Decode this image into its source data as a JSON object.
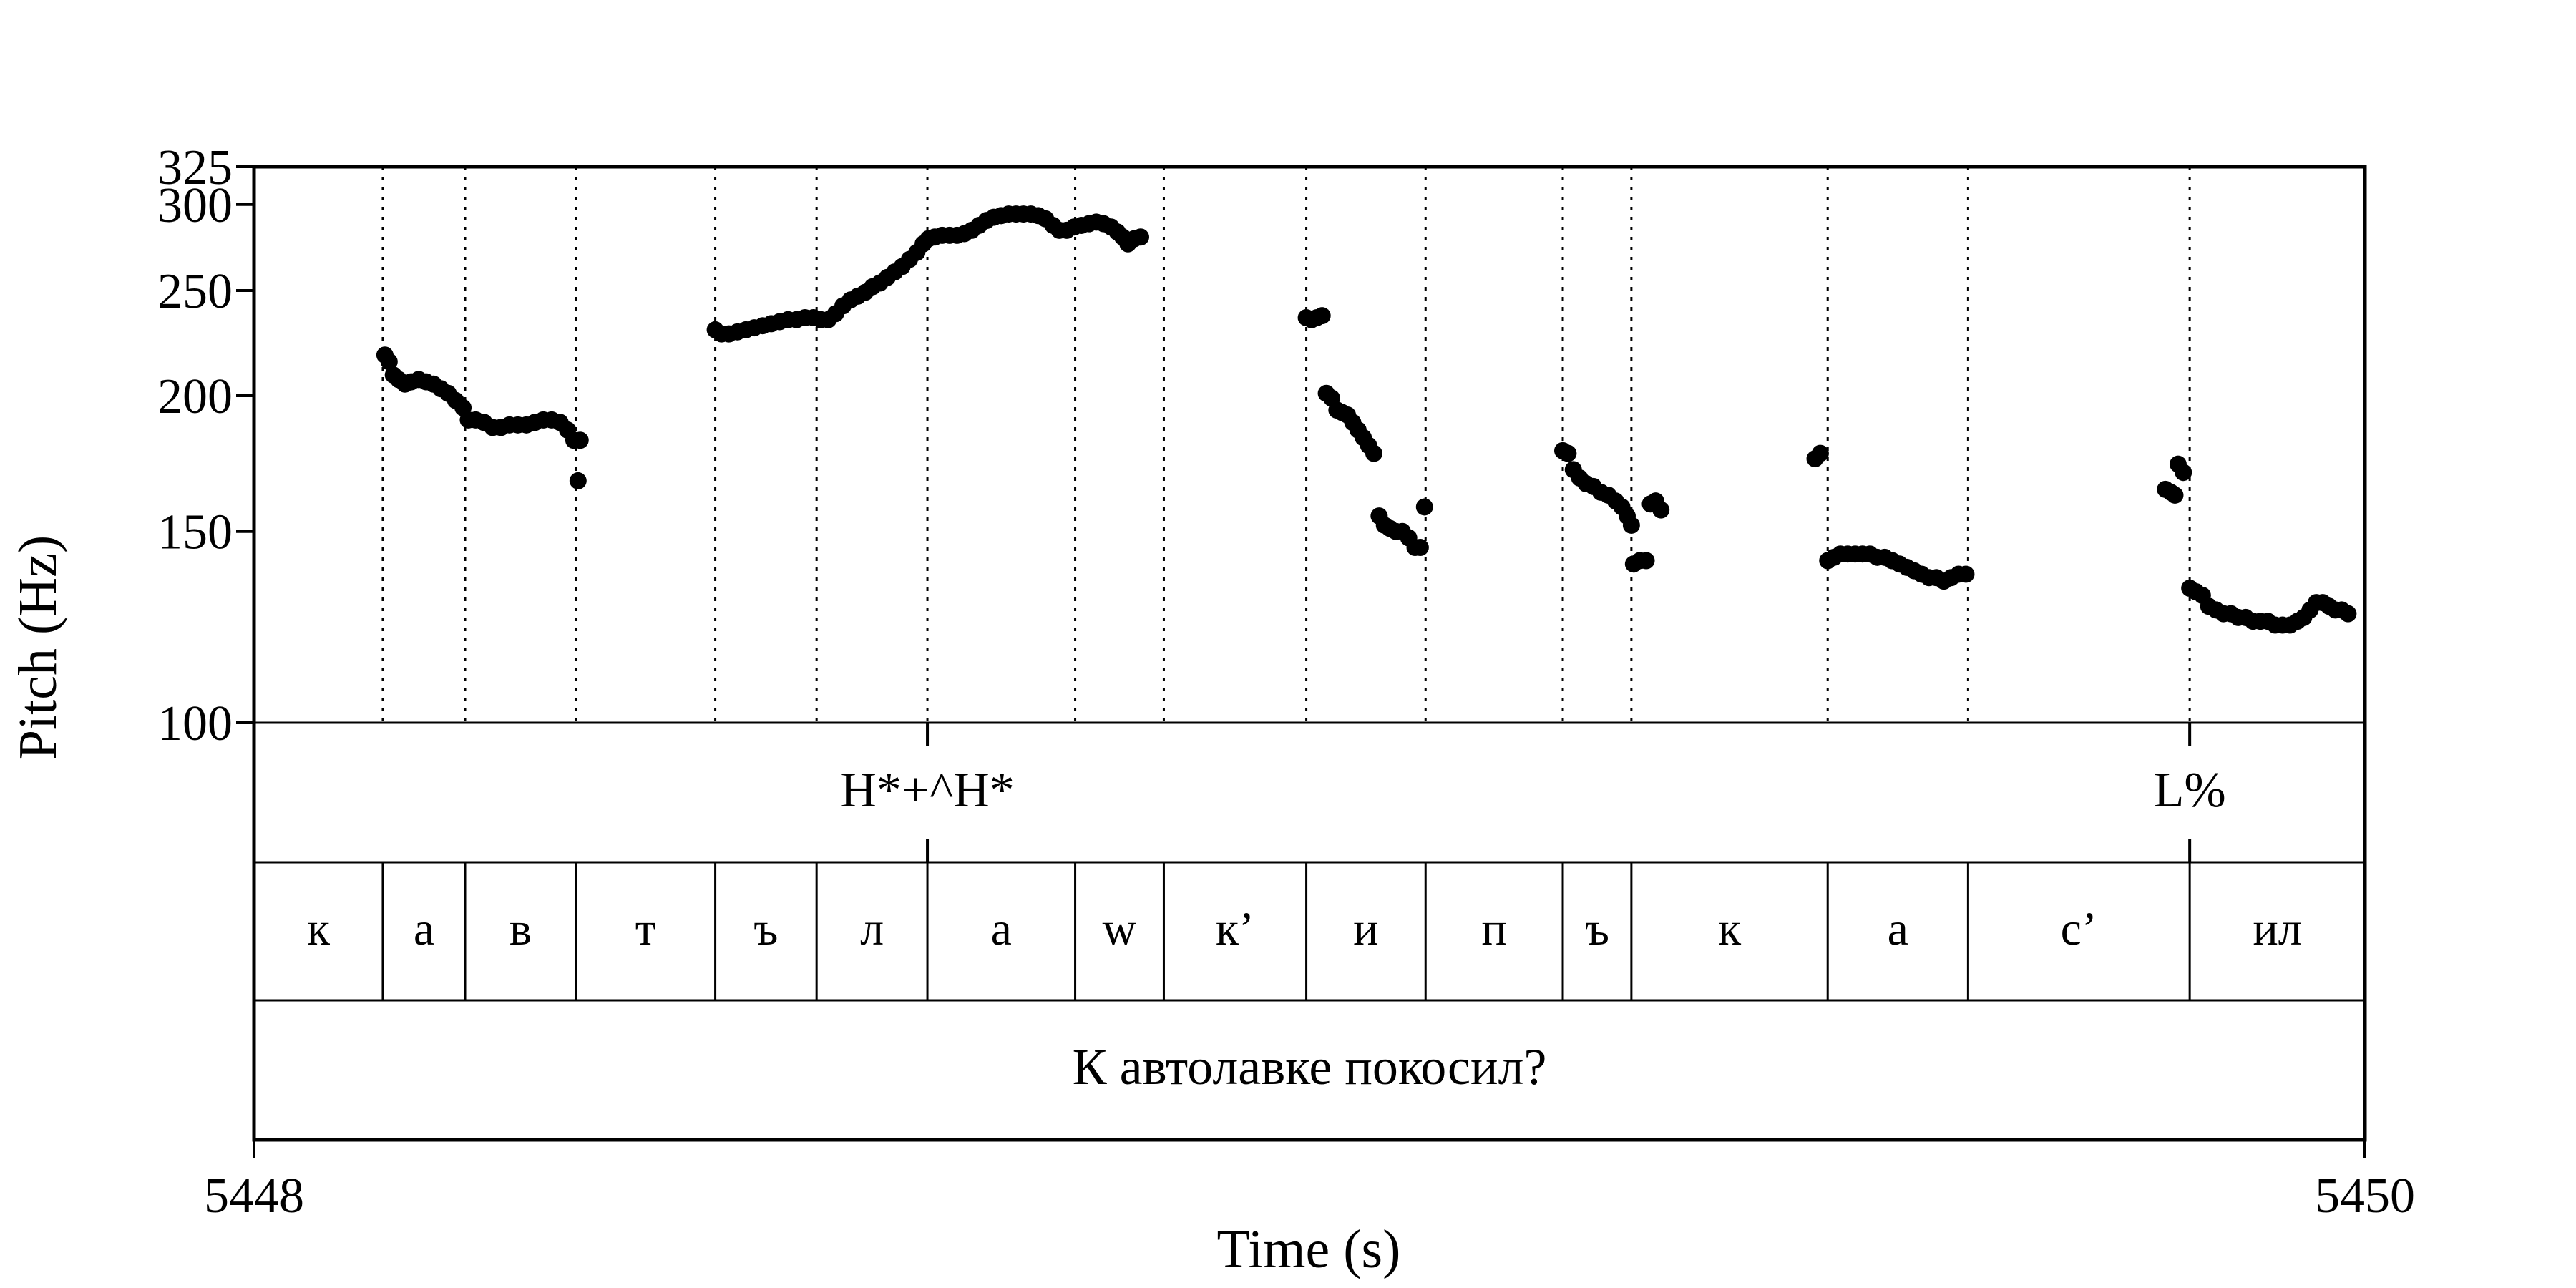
{
  "chart_data": {
    "type": "scatter",
    "ylabel": "Pitch (Hz)",
    "xlabel": "Time (s)",
    "ylim": [
      100,
      325
    ],
    "y_ticks": [
      "100",
      "150",
      "200",
      "250",
      "300",
      "325"
    ],
    "xlim": [
      5448,
      5450
    ],
    "x_ticks": [
      "5448",
      "5450"
    ],
    "scale": "log",
    "grid": "dotted vertical lines at segment boundaries",
    "boundaries": [
      5448.122,
      5448.2,
      5448.305,
      5448.437,
      5448.533,
      5448.638,
      5448.778,
      5448.862,
      5448.997,
      5449.11,
      5449.24,
      5449.305,
      5449.491,
      5449.624,
      5449.834
    ],
    "tones": [
      {
        "time": 5448.638,
        "label": "H*+^H*"
      },
      {
        "time": 5449.834,
        "label": "L%"
      }
    ],
    "segments": [
      {
        "start": 5448.0,
        "end": 5448.122,
        "label": "к"
      },
      {
        "start": 5448.122,
        "end": 5448.2,
        "label": "а"
      },
      {
        "start": 5448.2,
        "end": 5448.305,
        "label": "в"
      },
      {
        "start": 5448.305,
        "end": 5448.437,
        "label": "т"
      },
      {
        "start": 5448.437,
        "end": 5448.533,
        "label": "ъ"
      },
      {
        "start": 5448.533,
        "end": 5448.638,
        "label": "л"
      },
      {
        "start": 5448.638,
        "end": 5448.778,
        "label": "а"
      },
      {
        "start": 5448.778,
        "end": 5448.862,
        "label": "w"
      },
      {
        "start": 5448.862,
        "end": 5448.997,
        "label": "к’"
      },
      {
        "start": 5448.997,
        "end": 5449.11,
        "label": "и"
      },
      {
        "start": 5449.11,
        "end": 5449.24,
        "label": "п"
      },
      {
        "start": 5449.24,
        "end": 5449.305,
        "label": "ъ"
      },
      {
        "start": 5449.305,
        "end": 5449.491,
        "label": "к"
      },
      {
        "start": 5449.491,
        "end": 5449.624,
        "label": "а"
      },
      {
        "start": 5449.624,
        "end": 5449.834,
        "label": "с’"
      },
      {
        "start": 5449.834,
        "end": 5450.0,
        "label": "ил"
      }
    ],
    "sentence": "К автолавке покосил?",
    "series": [
      {
        "points": [
          [
            5448.124,
            218
          ],
          [
            5448.128,
            215
          ],
          [
            5448.132,
            209
          ],
          [
            5448.137,
            207
          ],
          [
            5448.143,
            205
          ],
          [
            5448.149,
            206
          ],
          [
            5448.156,
            207
          ],
          [
            5448.163,
            206
          ],
          [
            5448.17,
            205
          ],
          [
            5448.177,
            203
          ],
          [
            5448.184,
            201
          ],
          [
            5448.191,
            198
          ],
          [
            5448.198,
            195
          ],
          [
            5448.203,
            190
          ],
          [
            5448.21,
            190
          ],
          [
            5448.218,
            189
          ],
          [
            5448.226,
            187
          ],
          [
            5448.234,
            187
          ],
          [
            5448.242,
            188
          ],
          [
            5448.25,
            188
          ],
          [
            5448.258,
            188
          ],
          [
            5448.266,
            189
          ],
          [
            5448.274,
            190
          ],
          [
            5448.282,
            190
          ],
          [
            5448.29,
            189
          ],
          [
            5448.297,
            186
          ],
          [
            5448.303,
            182
          ],
          [
            5448.309,
            182
          ],
          [
            5448.307,
            167
          ],
          [
            5448.437,
            230
          ],
          [
            5448.443,
            228
          ],
          [
            5448.45,
            228
          ],
          [
            5448.458,
            229
          ],
          [
            5448.466,
            230
          ],
          [
            5448.474,
            231
          ],
          [
            5448.482,
            232
          ],
          [
            5448.49,
            233
          ],
          [
            5448.498,
            234
          ],
          [
            5448.506,
            235
          ],
          [
            5448.514,
            235
          ],
          [
            5448.522,
            236
          ],
          [
            5448.53,
            236
          ],
          [
            5448.537,
            235
          ],
          [
            5448.544,
            235
          ],
          [
            5448.551,
            238
          ],
          [
            5448.558,
            242
          ],
          [
            5448.565,
            245
          ],
          [
            5448.572,
            247
          ],
          [
            5448.579,
            249
          ],
          [
            5448.586,
            252
          ],
          [
            5448.593,
            254
          ],
          [
            5448.6,
            257
          ],
          [
            5448.607,
            260
          ],
          [
            5448.614,
            263
          ],
          [
            5448.621,
            267
          ],
          [
            5448.628,
            271
          ],
          [
            5448.634,
            276
          ],
          [
            5448.639,
            279
          ],
          [
            5448.645,
            280
          ],
          [
            5448.652,
            281
          ],
          [
            5448.659,
            281
          ],
          [
            5448.666,
            281
          ],
          [
            5448.673,
            282
          ],
          [
            5448.68,
            284
          ],
          [
            5448.687,
            287
          ],
          [
            5448.694,
            290
          ],
          [
            5448.701,
            292
          ],
          [
            5448.708,
            293
          ],
          [
            5448.715,
            294
          ],
          [
            5448.722,
            294
          ],
          [
            5448.729,
            294
          ],
          [
            5448.736,
            294
          ],
          [
            5448.743,
            293
          ],
          [
            5448.75,
            291
          ],
          [
            5448.757,
            287
          ],
          [
            5448.763,
            284
          ],
          [
            5448.77,
            284
          ],
          [
            5448.777,
            286
          ],
          [
            5448.784,
            287
          ],
          [
            5448.791,
            288
          ],
          [
            5448.798,
            289
          ],
          [
            5448.805,
            288
          ],
          [
            5448.812,
            286
          ],
          [
            5448.818,
            283
          ],
          [
            5448.823,
            280
          ],
          [
            5448.828,
            276
          ],
          [
            5448.834,
            279
          ],
          [
            5448.84,
            280
          ],
          [
            5448.997,
            236
          ],
          [
            5449.002,
            235
          ],
          [
            5449.007,
            236
          ],
          [
            5449.012,
            237
          ],
          [
            5449.016,
            201
          ],
          [
            5449.021,
            199
          ],
          [
            5449.026,
            194
          ],
          [
            5449.031,
            193
          ],
          [
            5449.036,
            192
          ],
          [
            5449.041,
            189
          ],
          [
            5449.046,
            186
          ],
          [
            5449.051,
            183
          ],
          [
            5449.056,
            180
          ],
          [
            5449.061,
            177
          ],
          [
            5449.066,
            155
          ],
          [
            5449.071,
            152
          ],
          [
            5449.076,
            151
          ],
          [
            5449.082,
            150
          ],
          [
            5449.088,
            150
          ],
          [
            5449.094,
            148
          ],
          [
            5449.1,
            145
          ],
          [
            5449.105,
            145
          ],
          [
            5449.109,
            158
          ],
          [
            5449.24,
            178
          ],
          [
            5449.245,
            177
          ],
          [
            5449.25,
            171
          ],
          [
            5449.256,
            168
          ],
          [
            5449.262,
            166
          ],
          [
            5449.269,
            165
          ],
          [
            5449.276,
            163
          ],
          [
            5449.283,
            162
          ],
          [
            5449.29,
            160
          ],
          [
            5449.296,
            158
          ],
          [
            5449.301,
            155
          ],
          [
            5449.305,
            152
          ],
          [
            5449.307,
            140
          ],
          [
            5449.313,
            141
          ],
          [
            5449.319,
            141
          ],
          [
            5449.323,
            159
          ],
          [
            5449.328,
            160
          ],
          [
            5449.333,
            157
          ],
          [
            5449.479,
            175
          ],
          [
            5449.484,
            177
          ],
          [
            5449.491,
            141
          ],
          [
            5449.497,
            142
          ],
          [
            5449.503,
            143
          ],
          [
            5449.51,
            143
          ],
          [
            5449.517,
            143
          ],
          [
            5449.524,
            143
          ],
          [
            5449.531,
            143
          ],
          [
            5449.538,
            142
          ],
          [
            5449.545,
            142
          ],
          [
            5449.552,
            141
          ],
          [
            5449.559,
            140
          ],
          [
            5449.566,
            139
          ],
          [
            5449.573,
            138
          ],
          [
            5449.58,
            137
          ],
          [
            5449.587,
            136
          ],
          [
            5449.594,
            136
          ],
          [
            5449.601,
            135
          ],
          [
            5449.608,
            136
          ],
          [
            5449.615,
            137
          ],
          [
            5449.622,
            137
          ],
          [
            5449.811,
            164
          ],
          [
            5449.816,
            163
          ],
          [
            5449.82,
            162
          ],
          [
            5449.823,
            173
          ],
          [
            5449.828,
            170
          ],
          [
            5449.834,
            133
          ],
          [
            5449.84,
            132
          ],
          [
            5449.846,
            131
          ],
          [
            5449.852,
            128
          ],
          [
            5449.859,
            127
          ],
          [
            5449.866,
            126
          ],
          [
            5449.873,
            126
          ],
          [
            5449.88,
            125
          ],
          [
            5449.887,
            125
          ],
          [
            5449.894,
            124
          ],
          [
            5449.901,
            124
          ],
          [
            5449.908,
            124
          ],
          [
            5449.915,
            123
          ],
          [
            5449.922,
            123
          ],
          [
            5449.929,
            123
          ],
          [
            5449.936,
            124
          ],
          [
            5449.942,
            125
          ],
          [
            5449.948,
            127
          ],
          [
            5449.954,
            129
          ],
          [
            5449.96,
            129
          ],
          [
            5449.966,
            128
          ],
          [
            5449.972,
            127
          ],
          [
            5449.978,
            127
          ],
          [
            5449.984,
            126
          ]
        ]
      }
    ]
  }
}
